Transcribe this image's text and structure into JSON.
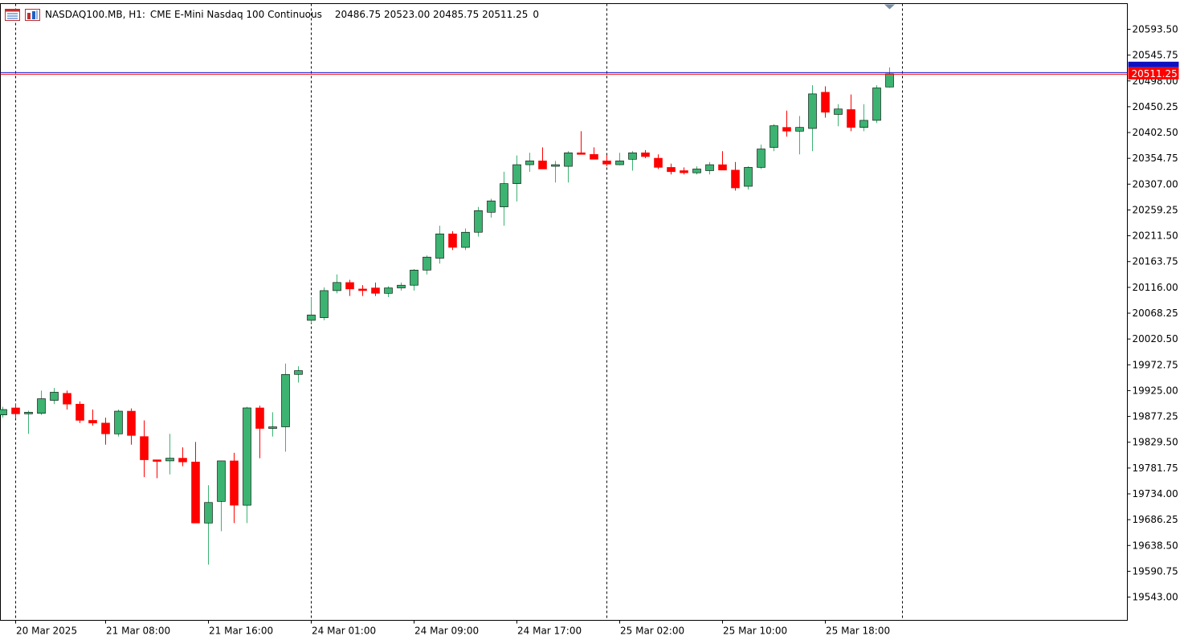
{
  "header": {
    "symbol_timeframe": "NASDAQ100.MB, H1:",
    "description": "CME E-Mini Nasdaq 100 Continuous",
    "ohlc": "20486.75 20523.00 20485.75 20511.25",
    "volume": "0",
    "icons": [
      "chart-window-icon",
      "indicators-icon"
    ]
  },
  "price_marker": {
    "label": "20511.25",
    "color": "#ff0000"
  },
  "colors": {
    "bull": "#3cb371",
    "bear": "#ff0000",
    "ask_line": "#1e1ec8",
    "bid_line": "#ff0000",
    "period_sep": "#000000"
  },
  "chart_data": {
    "type": "candlestick",
    "title": "NASDAQ100.MB, H1",
    "ylim": [
      19500,
      20641
    ],
    "y_ticks": [
      "20593.50",
      "20545.75",
      "20498.00",
      "20450.25",
      "20402.50",
      "20354.75",
      "20307.00",
      "20259.25",
      "20211.50",
      "20163.75",
      "20116.00",
      "20068.25",
      "20020.50",
      "19972.75",
      "19925.00",
      "19877.25",
      "19829.50",
      "19781.75",
      "19734.00",
      "19686.25",
      "19638.50",
      "19590.75",
      "19543.00"
    ],
    "x_ticks": [
      "20 Mar 2025",
      "21 Mar 08:00",
      "21 Mar 16:00",
      "24 Mar 01:00",
      "24 Mar 09:00",
      "24 Mar 17:00",
      "25 Mar 02:00",
      "25 Mar 10:00",
      "25 Mar 18:00"
    ],
    "x_tick_bars": [
      1,
      8,
      16,
      24,
      32,
      40,
      48,
      56,
      64
    ],
    "separator_bars": [
      1,
      24,
      47,
      70
    ],
    "current_price": 20511.25,
    "candles": [
      {
        "o": 19880,
        "h": 19895,
        "l": 19875,
        "c": 19890
      },
      {
        "o": 19893,
        "h": 19900,
        "l": 19875,
        "c": 19882
      },
      {
        "o": 19883,
        "h": 19888,
        "l": 19845,
        "c": 19885
      },
      {
        "o": 19883,
        "h": 19925,
        "l": 19880,
        "c": 19910
      },
      {
        "o": 19907,
        "h": 19930,
        "l": 19900,
        "c": 19922
      },
      {
        "o": 19920,
        "h": 19925,
        "l": 19890,
        "c": 19900
      },
      {
        "o": 19900,
        "h": 19905,
        "l": 19865,
        "c": 19870
      },
      {
        "o": 19870,
        "h": 19890,
        "l": 19860,
        "c": 19865
      },
      {
        "o": 19865,
        "h": 19875,
        "l": 19825,
        "c": 19845
      },
      {
        "o": 19845,
        "h": 19890,
        "l": 19840,
        "c": 19887
      },
      {
        "o": 19887,
        "h": 19892,
        "l": 19825,
        "c": 19842
      },
      {
        "o": 19840,
        "h": 19870,
        "l": 19765,
        "c": 19797
      },
      {
        "o": 19797,
        "h": 19797,
        "l": 19763,
        "c": 19795
      },
      {
        "o": 19795,
        "h": 19845,
        "l": 19770,
        "c": 19800
      },
      {
        "o": 19800,
        "h": 19820,
        "l": 19785,
        "c": 19793
      },
      {
        "o": 19793,
        "h": 19830,
        "l": 19680,
        "c": 19680
      },
      {
        "o": 19680,
        "h": 19750,
        "l": 19603,
        "c": 19718
      },
      {
        "o": 19720,
        "h": 19795,
        "l": 19665,
        "c": 19795
      },
      {
        "o": 19795,
        "h": 19810,
        "l": 19680,
        "c": 19713
      },
      {
        "o": 19713,
        "h": 19895,
        "l": 19680,
        "c": 19893
      },
      {
        "o": 19893,
        "h": 19897,
        "l": 19800,
        "c": 19855
      },
      {
        "o": 19855,
        "h": 19885,
        "l": 19840,
        "c": 19858
      },
      {
        "o": 19858,
        "h": 19975,
        "l": 19812,
        "c": 19955
      },
      {
        "o": 19955,
        "h": 19970,
        "l": 19940,
        "c": 19962
      },
      {
        "o": 20055,
        "h": 20098,
        "l": 20050,
        "c": 20065
      },
      {
        "o": 20060,
        "h": 20116,
        "l": 20055,
        "c": 20110
      },
      {
        "o": 20110,
        "h": 20140,
        "l": 20105,
        "c": 20125
      },
      {
        "o": 20125,
        "h": 20130,
        "l": 20100,
        "c": 20113
      },
      {
        "o": 20113,
        "h": 20120,
        "l": 20100,
        "c": 20110
      },
      {
        "o": 20115,
        "h": 20125,
        "l": 20100,
        "c": 20105
      },
      {
        "o": 20105,
        "h": 20118,
        "l": 20098,
        "c": 20115
      },
      {
        "o": 20115,
        "h": 20125,
        "l": 20110,
        "c": 20120
      },
      {
        "o": 20120,
        "h": 20150,
        "l": 20110,
        "c": 20148
      },
      {
        "o": 20148,
        "h": 20175,
        "l": 20140,
        "c": 20172
      },
      {
        "o": 20170,
        "h": 20230,
        "l": 20160,
        "c": 20215
      },
      {
        "o": 20215,
        "h": 20220,
        "l": 20185,
        "c": 20190
      },
      {
        "o": 20190,
        "h": 20225,
        "l": 20185,
        "c": 20218
      },
      {
        "o": 20218,
        "h": 20265,
        "l": 20210,
        "c": 20258
      },
      {
        "o": 20255,
        "h": 20280,
        "l": 20245,
        "c": 20276
      },
      {
        "o": 20265,
        "h": 20330,
        "l": 20230,
        "c": 20308
      },
      {
        "o": 20308,
        "h": 20360,
        "l": 20275,
        "c": 20343
      },
      {
        "o": 20343,
        "h": 20365,
        "l": 20330,
        "c": 20350
      },
      {
        "o": 20350,
        "h": 20375,
        "l": 20335,
        "c": 20335
      },
      {
        "o": 20342,
        "h": 20350,
        "l": 20310,
        "c": 20343
      },
      {
        "o": 20340,
        "h": 20368,
        "l": 20310,
        "c": 20365
      },
      {
        "o": 20365,
        "h": 20405,
        "l": 20362,
        "c": 20362
      },
      {
        "o": 20362,
        "h": 20375,
        "l": 20355,
        "c": 20353
      },
      {
        "o": 20350,
        "h": 20360,
        "l": 20340,
        "c": 20344
      },
      {
        "o": 20343,
        "h": 20365,
        "l": 20342,
        "c": 20350
      },
      {
        "o": 20353,
        "h": 20368,
        "l": 20332,
        "c": 20365
      },
      {
        "o": 20365,
        "h": 20370,
        "l": 20355,
        "c": 20358
      },
      {
        "o": 20355,
        "h": 20362,
        "l": 20335,
        "c": 20338
      },
      {
        "o": 20338,
        "h": 20345,
        "l": 20325,
        "c": 20330
      },
      {
        "o": 20332,
        "h": 20338,
        "l": 20325,
        "c": 20328
      },
      {
        "o": 20328,
        "h": 20340,
        "l": 20325,
        "c": 20335
      },
      {
        "o": 20332,
        "h": 20348,
        "l": 20325,
        "c": 20343
      },
      {
        "o": 20343,
        "h": 20368,
        "l": 20335,
        "c": 20333
      },
      {
        "o": 20333,
        "h": 20348,
        "l": 20295,
        "c": 20300
      },
      {
        "o": 20303,
        "h": 20340,
        "l": 20297,
        "c": 20338
      },
      {
        "o": 20338,
        "h": 20380,
        "l": 20335,
        "c": 20372
      },
      {
        "o": 20375,
        "h": 20418,
        "l": 20368,
        "c": 20415
      },
      {
        "o": 20412,
        "h": 20443,
        "l": 20395,
        "c": 20405
      },
      {
        "o": 20405,
        "h": 20433,
        "l": 20362,
        "c": 20412
      },
      {
        "o": 20410,
        "h": 20490,
        "l": 20368,
        "c": 20474
      },
      {
        "o": 20477,
        "h": 20488,
        "l": 20430,
        "c": 20440
      },
      {
        "o": 20436,
        "h": 20455,
        "l": 20414,
        "c": 20446
      },
      {
        "o": 20445,
        "h": 20473,
        "l": 20405,
        "c": 20412
      },
      {
        "o": 20412,
        "h": 20455,
        "l": 20405,
        "c": 20425
      },
      {
        "o": 20425,
        "h": 20490,
        "l": 20420,
        "c": 20485
      },
      {
        "o": 20486.75,
        "h": 20523,
        "l": 20485.75,
        "c": 20511.25
      }
    ]
  }
}
